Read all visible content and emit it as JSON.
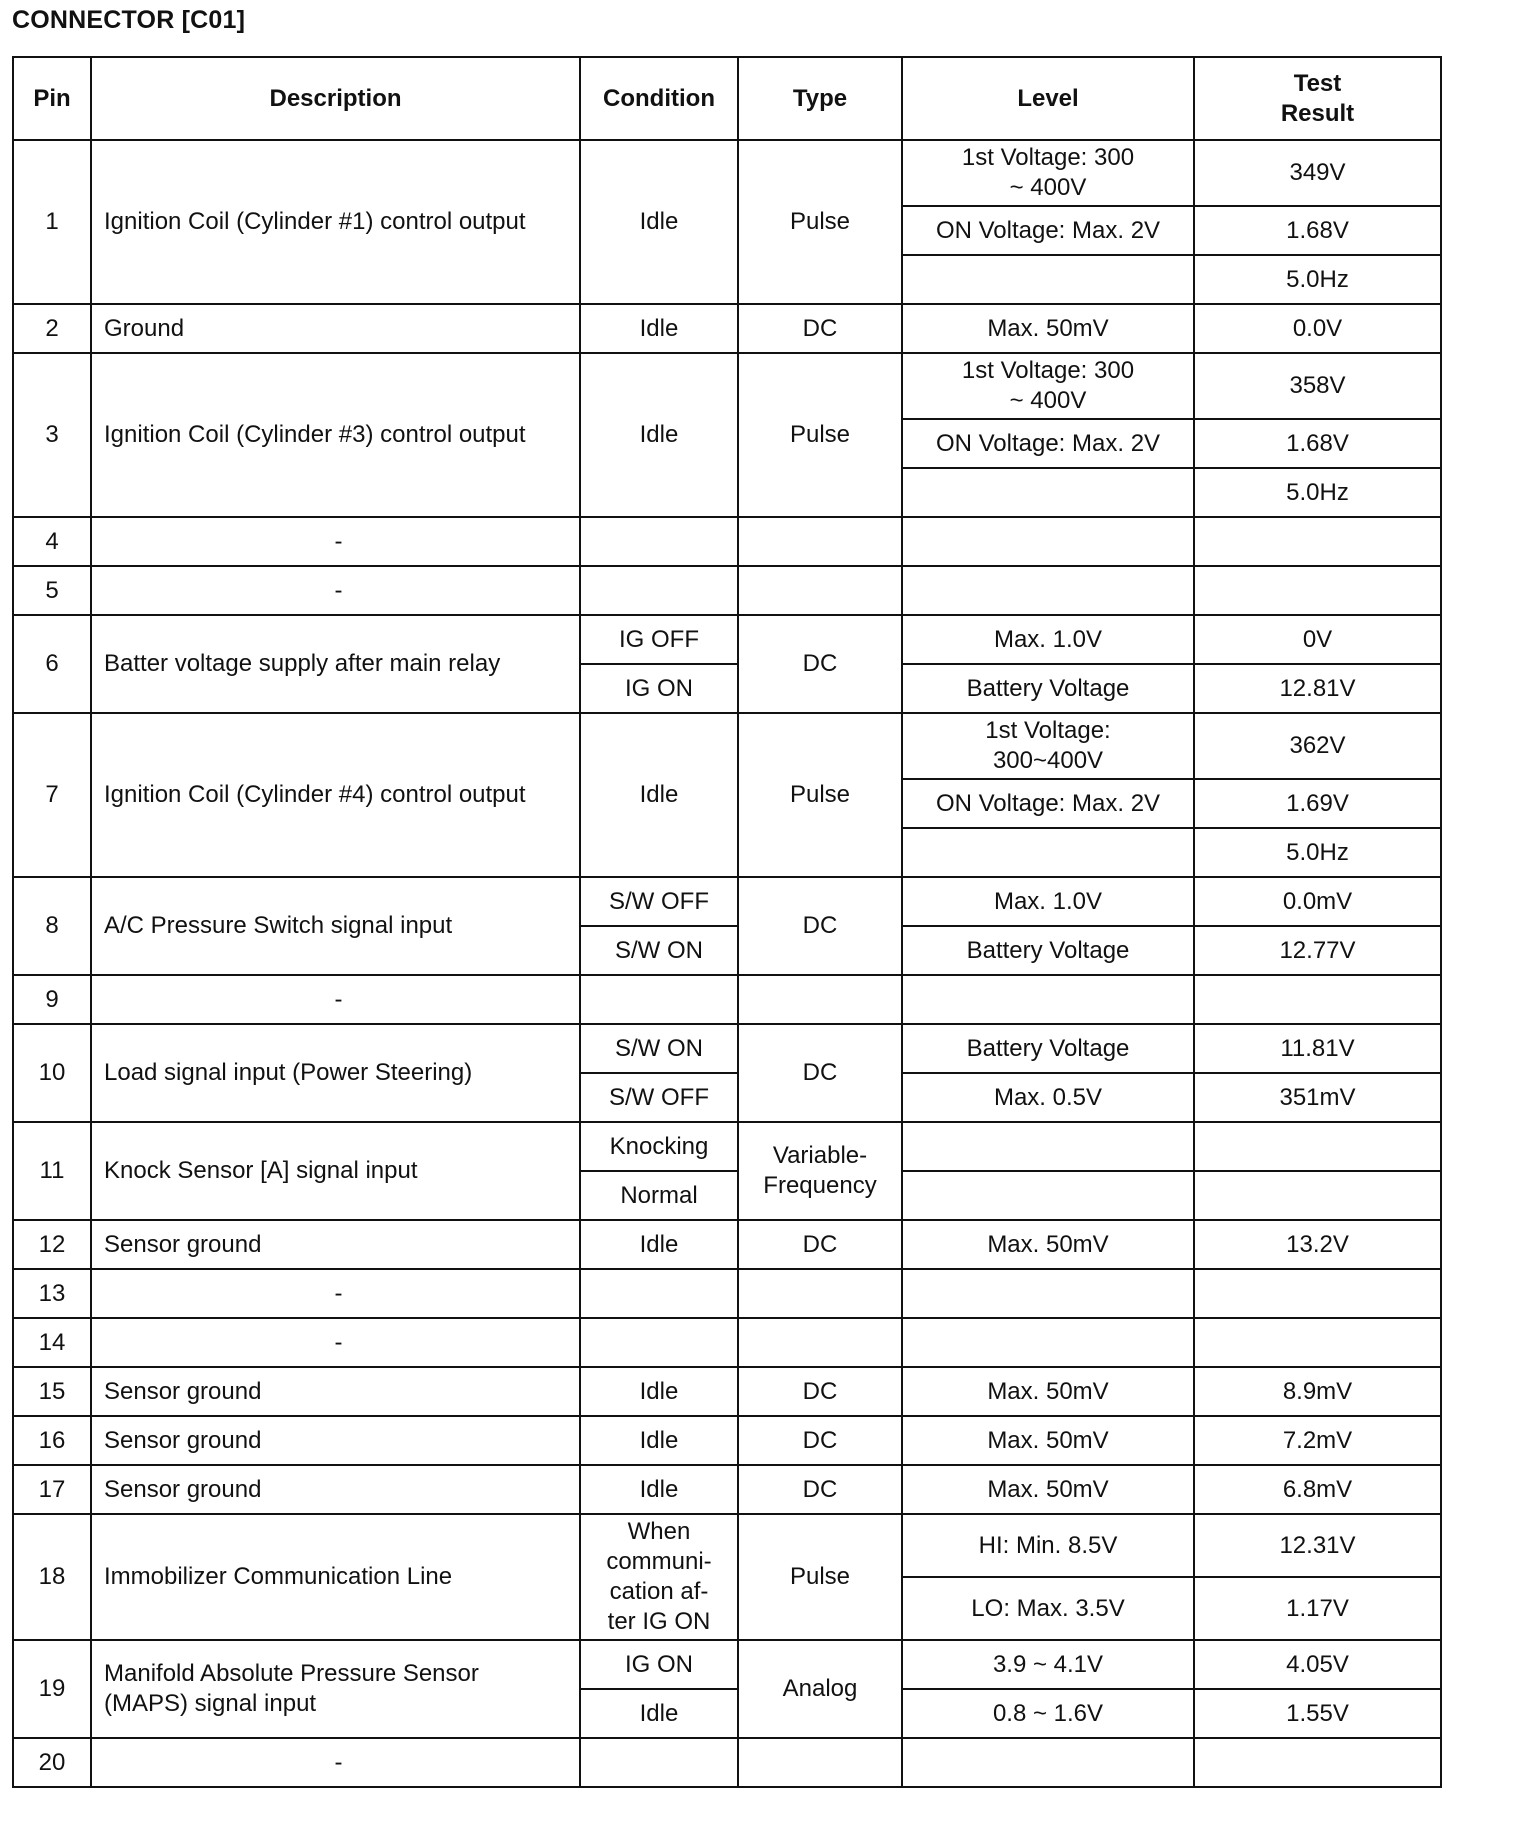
{
  "title": "CONNECTOR [C01]",
  "headers": [
    "Pin",
    "Description",
    "Condition",
    "Type",
    "Level",
    "Test\nResult"
  ],
  "rows": [
    {
      "pin": "1",
      "description": "Ignition Coil (Cylinder #1) control output",
      "conditions": [
        "Idle"
      ],
      "type": "Pulse",
      "levels": [
        "1st Voltage:  300\n~ 400V",
        "ON Voltage: Max. 2V",
        ""
      ],
      "results": [
        "349V",
        "1.68V",
        "5.0Hz"
      ]
    },
    {
      "pin": "2",
      "description": "Ground",
      "conditions": [
        "Idle"
      ],
      "type": "DC",
      "levels": [
        "Max.  50mV"
      ],
      "results": [
        "0.0V"
      ]
    },
    {
      "pin": "3",
      "description": "Ignition Coil (Cylinder #3) control output",
      "conditions": [
        "Idle"
      ],
      "type": "Pulse",
      "levels": [
        "1st Voltage:  300\n~ 400V",
        "ON Voltage: Max. 2V",
        ""
      ],
      "results": [
        "358V",
        "1.68V",
        "5.0Hz"
      ]
    },
    {
      "pin": "4",
      "description": "-",
      "conditions": [
        ""
      ],
      "type": "",
      "levels": [
        ""
      ],
      "results": [
        ""
      ]
    },
    {
      "pin": "5",
      "description": "-",
      "conditions": [
        ""
      ],
      "type": "",
      "levels": [
        ""
      ],
      "results": [
        ""
      ]
    },
    {
      "pin": "6",
      "description": "Batter voltage supply after main relay",
      "conditions": [
        "IG OFF",
        "IG ON"
      ],
      "type": "DC",
      "levels": [
        "Max.  1.0V",
        "Battery Voltage"
      ],
      "results": [
        "0V",
        "12.81V"
      ]
    },
    {
      "pin": "7",
      "description": "Ignition Coil (Cylinder #4) control output",
      "conditions": [
        "Idle"
      ],
      "type": "Pulse",
      "levels": [
        "1st  Voltage:\n300~400V",
        "ON Voltage: Max. 2V",
        ""
      ],
      "results": [
        "362V",
        "1.69V",
        "5.0Hz"
      ]
    },
    {
      "pin": "8",
      "description": "A/C Pressure Switch signal input",
      "conditions": [
        "S/W OFF",
        "S/W ON"
      ],
      "type": "DC",
      "levels": [
        "Max.  1.0V",
        "Battery Voltage"
      ],
      "results": [
        "0.0mV",
        "12.77V"
      ]
    },
    {
      "pin": "9",
      "description": "-",
      "conditions": [
        ""
      ],
      "type": "",
      "levels": [
        ""
      ],
      "results": [
        ""
      ]
    },
    {
      "pin": "10",
      "description": "Load signal input (Power Steering)",
      "conditions": [
        "S/W ON",
        "S/W OFF"
      ],
      "type": "DC",
      "levels": [
        "Battery Voltage",
        "Max.  0.5V"
      ],
      "results": [
        "11.81V",
        "351mV"
      ]
    },
    {
      "pin": "11",
      "description": "Knock Sensor [A] signal input",
      "conditions": [
        "Knocking",
        "Normal"
      ],
      "type": "Variable-\nFrequency",
      "levels": [
        "",
        ""
      ],
      "results": [
        "",
        ""
      ]
    },
    {
      "pin": "12",
      "description": "Sensor ground",
      "conditions": [
        "Idle"
      ],
      "type": "DC",
      "levels": [
        "Max.  50mV"
      ],
      "results": [
        "13.2V"
      ]
    },
    {
      "pin": "13",
      "description": "-",
      "conditions": [
        ""
      ],
      "type": "",
      "levels": [
        ""
      ],
      "results": [
        ""
      ]
    },
    {
      "pin": "14",
      "description": "-",
      "conditions": [
        ""
      ],
      "type": "",
      "levels": [
        ""
      ],
      "results": [
        ""
      ]
    },
    {
      "pin": "15",
      "description": "Sensor ground",
      "conditions": [
        "Idle"
      ],
      "type": "DC",
      "levels": [
        "Max.  50mV"
      ],
      "results": [
        "8.9mV"
      ]
    },
    {
      "pin": "16",
      "description": "Sensor ground",
      "conditions": [
        "Idle"
      ],
      "type": "DC",
      "levels": [
        "Max.  50mV"
      ],
      "results": [
        "7.2mV"
      ]
    },
    {
      "pin": "17",
      "description": "Sensor ground",
      "conditions": [
        "Idle"
      ],
      "type": "DC",
      "levels": [
        "Max.  50mV"
      ],
      "results": [
        "6.8mV"
      ]
    },
    {
      "pin": "18",
      "description": "Immobilizer Communication Line",
      "conditions": [
        "When\ncommuni-\ncation af-\nter IG ON"
      ],
      "type": "Pulse",
      "levels": [
        "HI: Min.  8.5V",
        "LO: Max.  3.5V"
      ],
      "results": [
        "12.31V",
        "1.17V"
      ]
    },
    {
      "pin": "19",
      "description": "Manifold Absolute Pressure Sensor\n(MAPS) signal input",
      "conditions": [
        "IG ON",
        "Idle"
      ],
      "type": "Analog",
      "levels": [
        "3.9 ~ 4.1V",
        "0.8 ~ 1.6V"
      ],
      "results": [
        "4.05V",
        "1.55V"
      ]
    },
    {
      "pin": "20",
      "description": "-",
      "conditions": [
        ""
      ],
      "type": "",
      "levels": [
        ""
      ],
      "results": [
        ""
      ]
    }
  ]
}
